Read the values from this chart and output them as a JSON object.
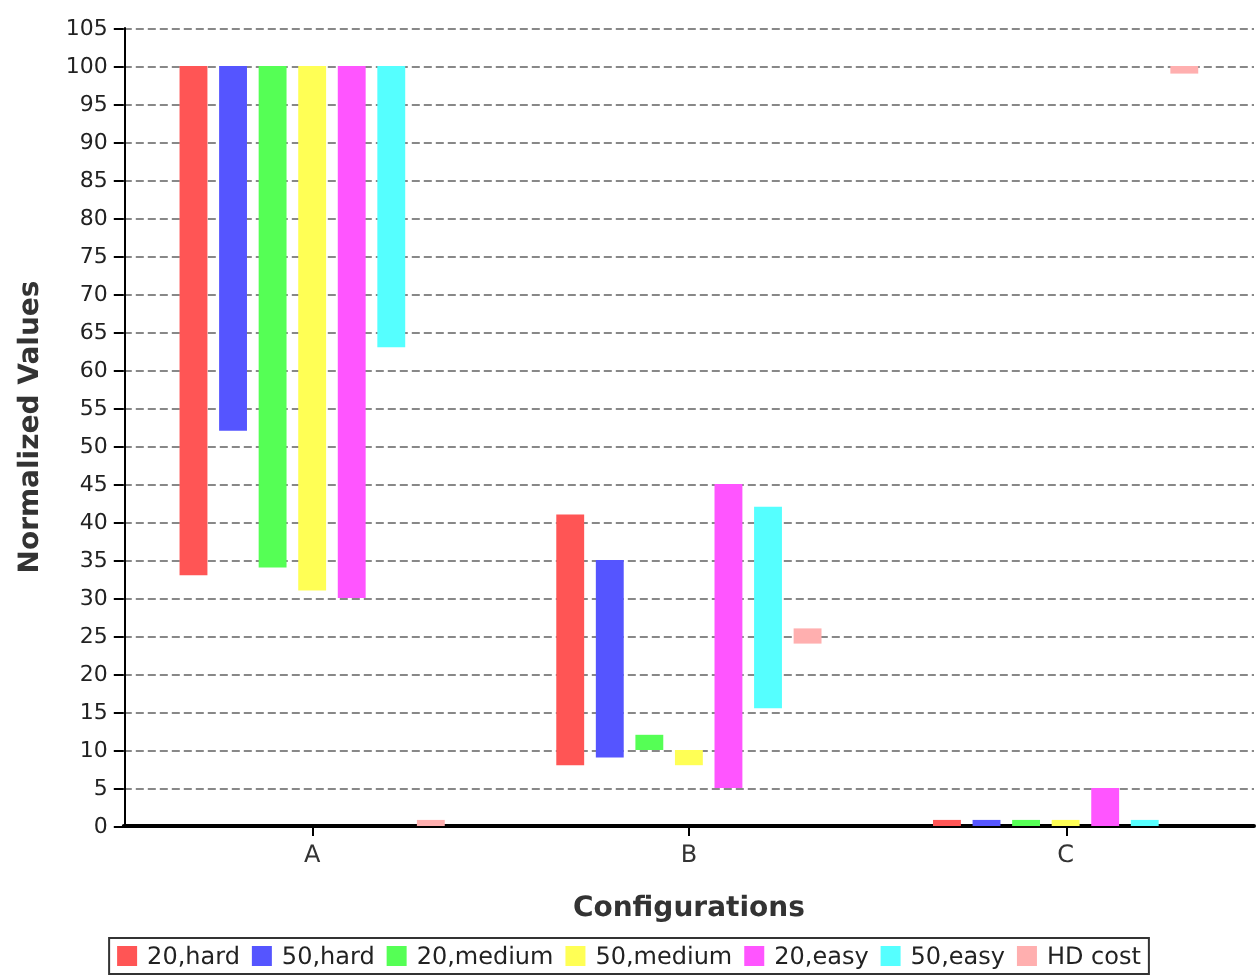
{
  "chart_data": {
    "type": "bar",
    "xlabel": "Configurations",
    "ylabel": "Normalized Values",
    "categories": [
      "A",
      "B",
      "C"
    ],
    "ylim": [
      0,
      105
    ],
    "yticks": [
      0,
      5,
      10,
      15,
      20,
      25,
      30,
      35,
      40,
      45,
      50,
      55,
      60,
      65,
      70,
      75,
      80,
      85,
      90,
      95,
      100,
      105
    ],
    "grid": "y",
    "legend": "bottom",
    "series": [
      {
        "name": "20,hard",
        "color": "#ff5555",
        "base": [
          33,
          8,
          0
        ],
        "values": [
          67,
          33,
          0.8
        ]
      },
      {
        "name": "50,hard",
        "color": "#5555ff",
        "base": [
          52,
          9,
          0
        ],
        "values": [
          48,
          26,
          0.8
        ]
      },
      {
        "name": "20,medium",
        "color": "#55ff55",
        "base": [
          34,
          10,
          0
        ],
        "values": [
          66,
          2,
          0.8
        ]
      },
      {
        "name": "50,medium",
        "color": "#ffff55",
        "base": [
          31,
          8,
          0
        ],
        "values": [
          69,
          2,
          0.8
        ]
      },
      {
        "name": "20,easy",
        "color": "#ff55ff",
        "base": [
          30,
          5,
          0
        ],
        "values": [
          70,
          40,
          5
        ]
      },
      {
        "name": "50,easy",
        "color": "#55ffff",
        "base": [
          63,
          15.5,
          0
        ],
        "values": [
          37,
          26.5,
          0.8
        ]
      },
      {
        "name": "HD cost",
        "color": "#ffafaf",
        "base": [
          0,
          24,
          99
        ],
        "values": [
          0.8,
          2,
          1
        ]
      }
    ]
  }
}
